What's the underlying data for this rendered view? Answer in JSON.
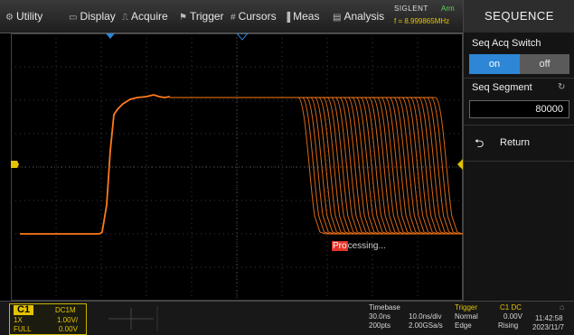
{
  "menu": {
    "items": [
      {
        "label": "Utility",
        "icon": "utility-icon",
        "glyph": "⚙"
      },
      {
        "label": "Display",
        "icon": "display-icon",
        "glyph": "▭"
      },
      {
        "label": "Acquire",
        "icon": "acquire-icon",
        "glyph": "⎍"
      },
      {
        "label": "Trigger",
        "icon": "trigger-icon",
        "glyph": "⚑"
      },
      {
        "label": "Cursors",
        "icon": "cursors-icon",
        "glyph": "#"
      },
      {
        "label": "Meas",
        "icon": "meas-icon",
        "glyph": "▐"
      },
      {
        "label": "Analysis",
        "icon": "analysis-icon",
        "glyph": "▤"
      }
    ],
    "brand": "SIGLENT",
    "run_state": "Arm",
    "frequency": "f = 8.999865MHz"
  },
  "panel": {
    "title": "SEQUENCE",
    "seq_acq_switch_label": "Seq Acq Switch",
    "switch_on": "on",
    "switch_off": "off",
    "seq_segment_label": "Seq Segment",
    "seq_segment_value": "80000",
    "return_label": "Return",
    "return_icon": "return-arrow-icon",
    "segment_icon": "refresh-icon"
  },
  "screen": {
    "processing_highlight": "Pro",
    "processing_rest": "cessing...",
    "trace_color": "#ff7a1a",
    "grid_color": "#3a3a3a"
  },
  "channel": {
    "name": "C1",
    "coupling": "DC1M",
    "probe": "1X",
    "scale": "1.00V/",
    "bandwidth": "FULL",
    "offset": "0.00V"
  },
  "timebase": {
    "label": "Timebase",
    "delay": "30.0ns",
    "scale": "10.0ns/div",
    "points": "200pts",
    "sample_rate": "2.00GSa/s"
  },
  "trigger": {
    "label": "Trigger",
    "source": "C1 DC",
    "mode": "Normal",
    "level": "0.00V",
    "type": "Edge",
    "slope": "Rising"
  },
  "clock": {
    "time": "11:42:58",
    "date": "2023/11/7"
  },
  "colors": {
    "accent_blue": "#2d86d6",
    "channel_yellow": "#e4c400",
    "processing_red": "#e4342a"
  }
}
